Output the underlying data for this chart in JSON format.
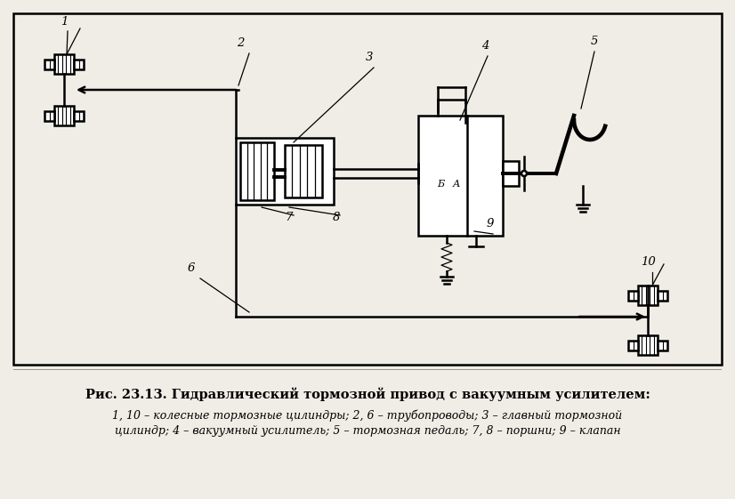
{
  "bg_color": "#f0ede6",
  "line_color": "#000000",
  "lw": 1.8,
  "title": "Рис. 23.13. Гидравлический тормозной привод с вакуумным усилителем:",
  "caption1": "1, 10 – колесные тормозные цилиндры; 2, 6 – трубопроводы; 3 – главный тормозной",
  "caption2": "цилиндр; 4 – вакуумный усилитель; 5 – тормозная педаль; 7, 8 – поршни; 9 – клапан"
}
